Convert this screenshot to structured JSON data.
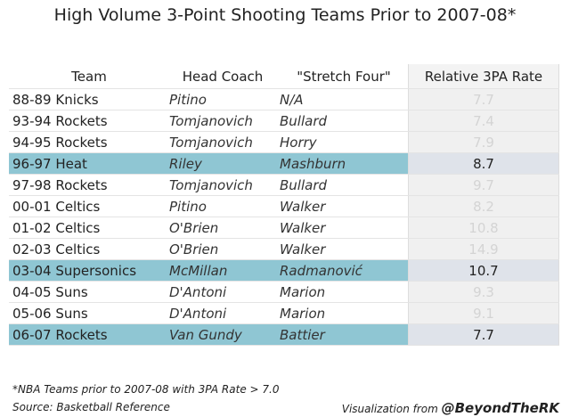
{
  "chart_data": {
    "type": "table",
    "title": "High Volume 3-Point Shooting Teams Prior to 2007-08*",
    "columns": [
      "Team",
      "Head Coach",
      "\"Stretch Four\"",
      "Relative 3PA Rate"
    ],
    "rows": [
      {
        "team": "88-89 Knicks",
        "coach": "Pitino",
        "stretch": "N/A",
        "rate": "7.7",
        "highlight": false
      },
      {
        "team": "93-94 Rockets",
        "coach": "Tomjanovich",
        "stretch": "Bullard",
        "rate": "7.4",
        "highlight": false
      },
      {
        "team": "94-95 Rockets",
        "coach": "Tomjanovich",
        "stretch": "Horry",
        "rate": "7.9",
        "highlight": false
      },
      {
        "team": "96-97 Heat",
        "coach": "Riley",
        "stretch": "Mashburn",
        "rate": "8.7",
        "highlight": true
      },
      {
        "team": "97-98 Rockets",
        "coach": "Tomjanovich",
        "stretch": "Bullard",
        "rate": "9.7",
        "highlight": false
      },
      {
        "team": "00-01 Celtics",
        "coach": "Pitino",
        "stretch": "Walker",
        "rate": "8.2",
        "highlight": false
      },
      {
        "team": "01-02 Celtics",
        "coach": "O'Brien",
        "stretch": "Walker",
        "rate": "10.8",
        "highlight": false
      },
      {
        "team": "02-03 Celtics",
        "coach": "O'Brien",
        "stretch": "Walker",
        "rate": "14.9",
        "highlight": false
      },
      {
        "team": "03-04 Supersonics",
        "coach": "McMillan",
        "stretch": "Radmanović",
        "rate": "10.7",
        "highlight": true
      },
      {
        "team": "04-05 Suns",
        "coach": "D'Antoni",
        "stretch": "Marion",
        "rate": "9.3",
        "highlight": false
      },
      {
        "team": "05-06 Suns",
        "coach": "D'Antoni",
        "stretch": "Marion",
        "rate": "9.1",
        "highlight": false
      },
      {
        "team": "06-07 Rockets",
        "coach": "Van Gundy",
        "stretch": "Battier",
        "rate": "7.7",
        "highlight": true
      }
    ],
    "highlight_color": "#8fc6d3"
  },
  "footer": {
    "note": "*NBA Teams prior to 2007-08 with 3PA Rate > 7.0",
    "source": "Source: Basketball Reference",
    "credit_prefix": "Visualization from ",
    "credit_handle": "@BeyondTheRK"
  }
}
